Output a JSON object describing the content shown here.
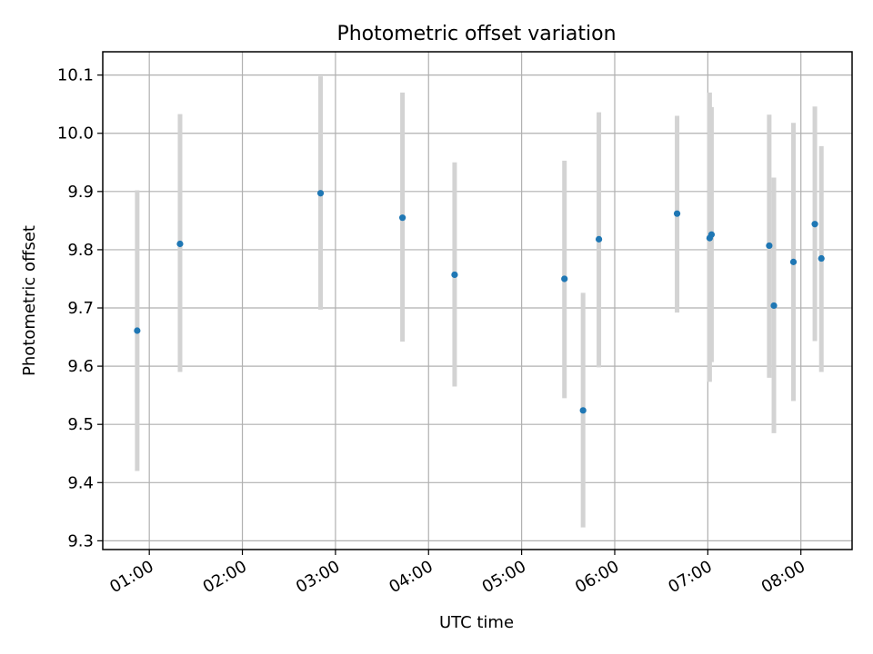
{
  "chart_data": {
    "type": "scatter",
    "title": "Photometric offset variation",
    "xlabel": "UTC time",
    "ylabel": "Photometric offset",
    "x_axis": {
      "type": "time",
      "unit": "hour",
      "range": [
        0.5,
        8.55
      ],
      "ticks": [
        1,
        2,
        3,
        4,
        5,
        6,
        7,
        8
      ],
      "tick_labels": [
        "01:00",
        "02:00",
        "03:00",
        "04:00",
        "05:00",
        "06:00",
        "07:00",
        "08:00"
      ]
    },
    "y_axis": {
      "range": [
        9.285,
        10.14
      ],
      "ticks": [
        9.3,
        9.4,
        9.5,
        9.6,
        9.7,
        9.8,
        9.9,
        10.0,
        10.1
      ],
      "tick_labels": [
        "9.3",
        "9.4",
        "9.5",
        "9.6",
        "9.7",
        "9.8",
        "9.9",
        "10.0",
        "10.1"
      ]
    },
    "grid": true,
    "marker_color": "#1f77b4",
    "errorbar_color": "#d3d3d3",
    "x": [
      0.87,
      1.33,
      2.84,
      3.72,
      4.28,
      5.46,
      5.66,
      5.83,
      6.67,
      7.02,
      7.04,
      7.66,
      7.71,
      7.92,
      8.15,
      8.22
    ],
    "y": [
      9.661,
      9.81,
      9.897,
      9.855,
      9.757,
      9.75,
      9.524,
      9.818,
      9.862,
      9.82,
      9.826,
      9.807,
      9.704,
      9.779,
      9.844,
      9.785
    ],
    "yerr_low": [
      9.42,
      9.59,
      9.697,
      9.642,
      9.565,
      9.545,
      9.323,
      9.598,
      9.692,
      9.573,
      9.607,
      9.58,
      9.485,
      9.54,
      9.643,
      9.59
    ],
    "yerr_high": [
      9.902,
      10.033,
      10.098,
      10.07,
      9.95,
      9.953,
      9.726,
      10.036,
      10.03,
      10.07,
      10.045,
      10.032,
      9.924,
      10.018,
      10.046,
      9.978
    ]
  }
}
